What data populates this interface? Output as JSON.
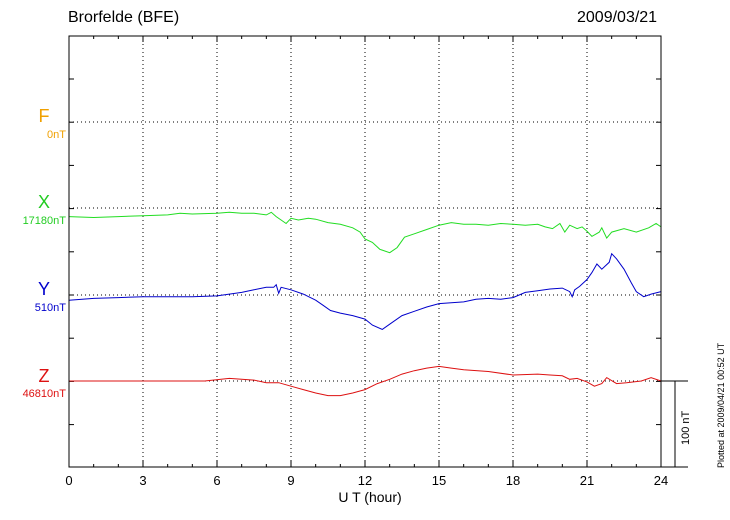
{
  "chart_data": {
    "type": "line",
    "title": "Brorfelde (BFE)",
    "date": "2009/03/21",
    "xlabel": "U T (hour)",
    "xlim": [
      0,
      24
    ],
    "xticks": [
      "0",
      "3",
      "6",
      "9",
      "12",
      "15",
      "18",
      "21",
      "24"
    ],
    "grid": true,
    "plotted_note": "Plotted at 2009/04/21 00:52 UT",
    "scale_label": "100 nT",
    "series": [
      {
        "name": "F",
        "baseline": "0nT",
        "color": "#f0a000",
        "points": []
      },
      {
        "name": "X",
        "baseline": "17180nT",
        "color": "#22dd22",
        "points": [
          [
            0,
            10
          ],
          [
            1,
            11
          ],
          [
            2,
            10
          ],
          [
            3,
            9
          ],
          [
            4,
            8
          ],
          [
            4.5,
            6
          ],
          [
            5,
            7
          ],
          [
            6,
            6
          ],
          [
            6.5,
            5
          ],
          [
            7,
            6
          ],
          [
            7.5,
            6
          ],
          [
            8,
            8
          ],
          [
            8.2,
            5
          ],
          [
            8.4,
            10
          ],
          [
            8.6,
            14
          ],
          [
            8.8,
            18
          ],
          [
            9,
            12
          ],
          [
            9.3,
            14
          ],
          [
            9.7,
            12
          ],
          [
            10,
            13
          ],
          [
            10.5,
            17
          ],
          [
            11,
            19
          ],
          [
            11.5,
            23
          ],
          [
            11.8,
            28
          ],
          [
            12,
            36
          ],
          [
            12.3,
            40
          ],
          [
            12.6,
            48
          ],
          [
            13,
            52
          ],
          [
            13.3,
            46
          ],
          [
            13.6,
            34
          ],
          [
            14,
            30
          ],
          [
            14.5,
            25
          ],
          [
            15,
            20
          ],
          [
            15.5,
            17
          ],
          [
            16,
            19
          ],
          [
            16.5,
            19
          ],
          [
            17,
            20
          ],
          [
            17.5,
            18
          ],
          [
            18,
            19
          ],
          [
            18.5,
            20
          ],
          [
            19,
            19
          ],
          [
            19.3,
            22
          ],
          [
            19.6,
            24
          ],
          [
            19.9,
            18
          ],
          [
            20.1,
            28
          ],
          [
            20.3,
            20
          ],
          [
            20.6,
            24
          ],
          [
            20.8,
            22
          ],
          [
            21,
            27
          ],
          [
            21.2,
            33
          ],
          [
            21.5,
            28
          ],
          [
            21.6,
            23
          ],
          [
            21.8,
            35
          ],
          [
            22,
            28
          ],
          [
            22.5,
            24
          ],
          [
            23,
            28
          ],
          [
            23.5,
            23
          ],
          [
            23.8,
            18
          ],
          [
            24,
            22
          ]
        ]
      },
      {
        "name": "Y",
        "baseline": "510nT",
        "color": "#0000cc",
        "points": [
          [
            0,
            6
          ],
          [
            1,
            4
          ],
          [
            2,
            3
          ],
          [
            3,
            2
          ],
          [
            4,
            2
          ],
          [
            5,
            2
          ],
          [
            6,
            1
          ],
          [
            6.5,
            -1
          ],
          [
            7,
            -3
          ],
          [
            7.5,
            -6
          ],
          [
            8,
            -9
          ],
          [
            8.3,
            -9
          ],
          [
            8.4,
            -12
          ],
          [
            8.5,
            -2
          ],
          [
            8.6,
            -9
          ],
          [
            9,
            -6
          ],
          [
            9.5,
            -1
          ],
          [
            10,
            6
          ],
          [
            10.3,
            12
          ],
          [
            10.6,
            18
          ],
          [
            11,
            21
          ],
          [
            11.5,
            24
          ],
          [
            12,
            28
          ],
          [
            12.3,
            35
          ],
          [
            12.7,
            40
          ],
          [
            13,
            34
          ],
          [
            13.5,
            24
          ],
          [
            14,
            19
          ],
          [
            14.5,
            14
          ],
          [
            15,
            10
          ],
          [
            15.5,
            9
          ],
          [
            16,
            8
          ],
          [
            16.5,
            5
          ],
          [
            17,
            4
          ],
          [
            17.5,
            5
          ],
          [
            18,
            3
          ],
          [
            18.5,
            -3
          ],
          [
            19,
            -5
          ],
          [
            19.5,
            -7
          ],
          [
            20,
            -8
          ],
          [
            20.3,
            -4
          ],
          [
            20.4,
            2
          ],
          [
            20.5,
            -6
          ],
          [
            20.7,
            -10
          ],
          [
            21,
            -18
          ],
          [
            21.2,
            -26
          ],
          [
            21.4,
            -36
          ],
          [
            21.6,
            -30
          ],
          [
            21.9,
            -38
          ],
          [
            22,
            -48
          ],
          [
            22.2,
            -42
          ],
          [
            22.5,
            -30
          ],
          [
            22.8,
            -14
          ],
          [
            23,
            -4
          ],
          [
            23.3,
            2
          ],
          [
            23.6,
            -1
          ],
          [
            24,
            -4
          ]
        ]
      },
      {
        "name": "Z",
        "baseline": "46810nT",
        "color": "#dd1111",
        "points": [
          [
            0,
            0
          ],
          [
            2,
            0
          ],
          [
            4,
            0
          ],
          [
            5.5,
            0
          ],
          [
            6.5,
            -3
          ],
          [
            7.5,
            -1
          ],
          [
            8,
            2
          ],
          [
            8.5,
            2
          ],
          [
            9,
            6
          ],
          [
            9.5,
            10
          ],
          [
            10,
            14
          ],
          [
            10.5,
            17
          ],
          [
            11,
            17
          ],
          [
            11.5,
            14
          ],
          [
            12,
            10
          ],
          [
            12.5,
            3
          ],
          [
            13,
            -2
          ],
          [
            13.5,
            -8
          ],
          [
            14,
            -12
          ],
          [
            14.5,
            -15
          ],
          [
            15,
            -17
          ],
          [
            15.5,
            -15
          ],
          [
            16,
            -13
          ],
          [
            17,
            -11
          ],
          [
            18,
            -7
          ],
          [
            19,
            -8
          ],
          [
            19.5,
            -7
          ],
          [
            20,
            -6
          ],
          [
            20.3,
            -2
          ],
          [
            20.6,
            -3
          ],
          [
            21,
            1
          ],
          [
            21.3,
            6
          ],
          [
            21.6,
            3
          ],
          [
            21.8,
            -4
          ],
          [
            22.2,
            3
          ],
          [
            22.6,
            2
          ],
          [
            23.2,
            0
          ],
          [
            23.6,
            -4
          ],
          [
            24,
            0
          ]
        ]
      }
    ]
  }
}
